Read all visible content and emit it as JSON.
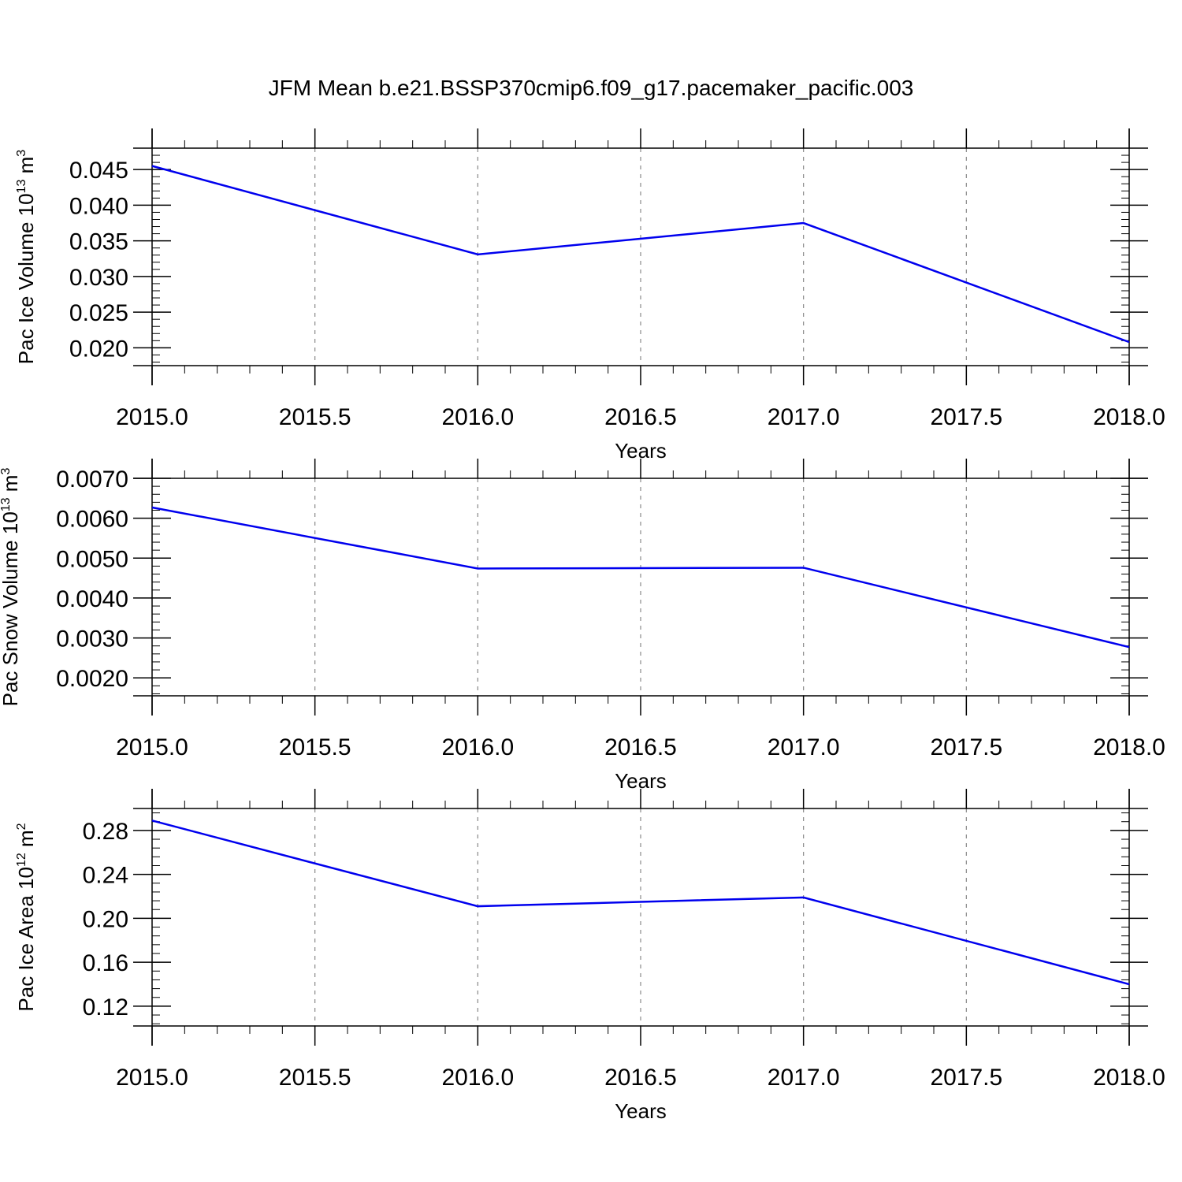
{
  "title": "JFM Mean b.e21.BSSP370cmip6.f09_g17.pacemaker_pacific.003",
  "colors": {
    "line": "#0000ee",
    "axis": "#000000",
    "grid": "#888888"
  },
  "chart_data": [
    {
      "type": "line",
      "title": "JFM Mean b.e21.BSSP370cmip6.f09_g17.pacemaker_pacific.003",
      "xlabel": "Years",
      "ylabel": {
        "base": "Pac Ice Volume 10",
        "exp": "13",
        "unit": " m",
        "unit_exp": "3"
      },
      "x": [
        2015.0,
        2016.0,
        2017.0,
        2018.0
      ],
      "values": [
        0.0455,
        0.0331,
        0.0375,
        0.0208
      ],
      "xlim": [
        2015.0,
        2018.0
      ],
      "ylim": [
        0.0175,
        0.048
      ],
      "xticks": [
        "2015.0",
        "2015.5",
        "2016.0",
        "2016.5",
        "2017.0",
        "2017.5",
        "2018.0"
      ],
      "yticks": [
        "0.020",
        "0.025",
        "0.030",
        "0.035",
        "0.040",
        "0.045"
      ],
      "ytick_values": [
        0.02,
        0.025,
        0.03,
        0.035,
        0.04,
        0.045
      ],
      "ygrid_values": [
        0.02,
        0.025,
        0.03,
        0.035,
        0.04,
        0.045
      ],
      "grid": "vertical dashed"
    },
    {
      "type": "line",
      "xlabel": "Years",
      "ylabel": {
        "base": "Pac Snow Volume 10",
        "exp": "13",
        "unit": " m",
        "unit_exp": "3"
      },
      "x": [
        2015.0,
        2016.0,
        2017.0,
        2018.0
      ],
      "values": [
        0.00627,
        0.00474,
        0.00476,
        0.00277
      ],
      "xlim": [
        2015.0,
        2018.0
      ],
      "ylim": [
        0.00155,
        0.007
      ],
      "xticks": [
        "2015.0",
        "2015.5",
        "2016.0",
        "2016.5",
        "2017.0",
        "2017.5",
        "2018.0"
      ],
      "yticks": [
        "0.0020",
        "0.0030",
        "0.0040",
        "0.0050",
        "0.0060",
        "0.0070"
      ],
      "ytick_values": [
        0.002,
        0.003,
        0.004,
        0.005,
        0.006,
        0.007
      ],
      "grid": "vertical dashed"
    },
    {
      "type": "line",
      "xlabel": "Years",
      "ylabel": {
        "base": "Pac Ice Area 10",
        "exp": "12",
        "unit": " m",
        "unit_exp": "2"
      },
      "x": [
        2015.0,
        2016.0,
        2017.0,
        2018.0
      ],
      "values": [
        0.289,
        0.211,
        0.219,
        0.14
      ],
      "xlim": [
        2015.0,
        2018.0
      ],
      "ylim": [
        0.102,
        0.3
      ],
      "xticks": [
        "2015.0",
        "2015.5",
        "2016.0",
        "2016.5",
        "2017.0",
        "2017.5",
        "2018.0"
      ],
      "yticks": [
        "0.12",
        "0.16",
        "0.20",
        "0.24",
        "0.28"
      ],
      "ytick_values": [
        0.12,
        0.16,
        0.2,
        0.24,
        0.28
      ],
      "grid": "vertical dashed"
    }
  ]
}
